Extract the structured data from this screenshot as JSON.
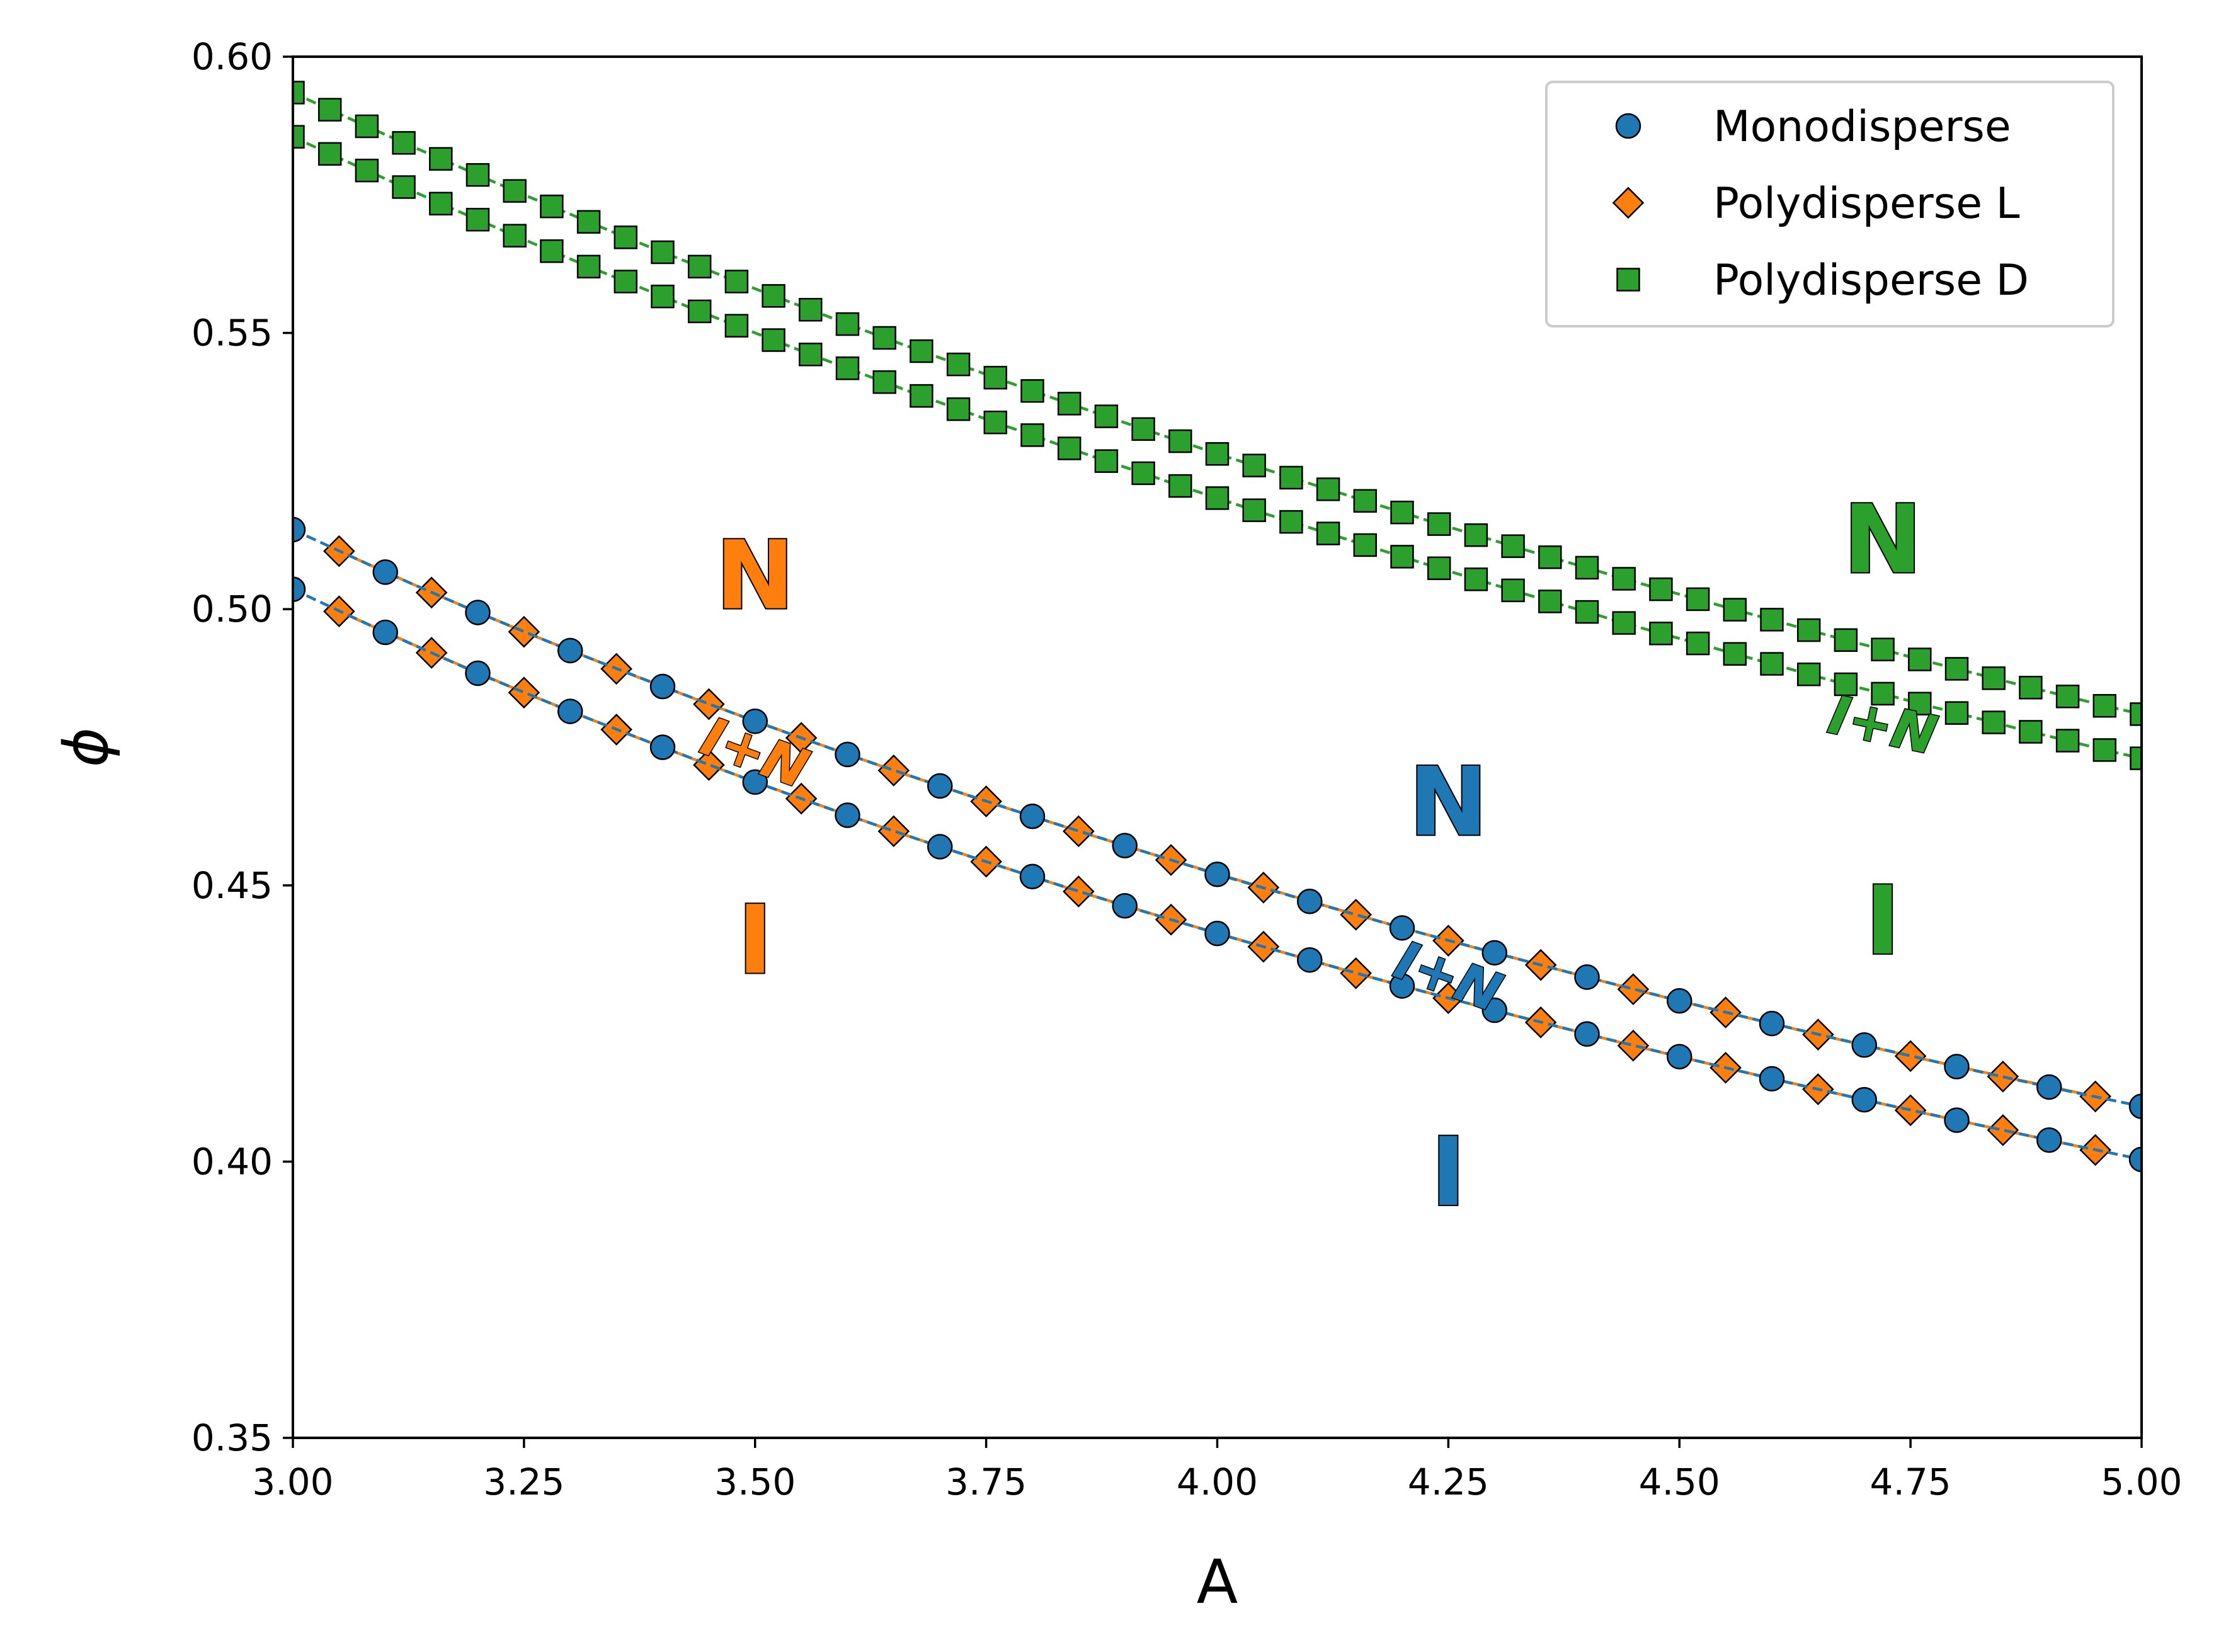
{
  "chart_data": {
    "type": "scatter",
    "title": "",
    "xlabel": "A",
    "ylabel": "ϕ",
    "xlim": [
      3.0,
      5.0
    ],
    "ylim": [
      0.35,
      0.6
    ],
    "x_ticks": [
      "3.00",
      "3.25",
      "3.50",
      "3.75",
      "4.00",
      "4.25",
      "4.50",
      "4.75",
      "5.00"
    ],
    "y_ticks": [
      "0.35",
      "0.40",
      "0.45",
      "0.50",
      "0.55",
      "0.60"
    ],
    "grid": false,
    "legend_position": "top-right",
    "series": [
      {
        "name": "Monodisperse",
        "marker": "circle",
        "color": "#1f77b4",
        "line_style": "dashed",
        "boundaries": [
          {
            "x": [
              3.0,
              3.1,
              3.2,
              3.3,
              3.4,
              3.5,
              3.6,
              3.7,
              3.8,
              3.9,
              4.0,
              4.1,
              4.2,
              4.3,
              4.4,
              4.5,
              4.6,
              4.7,
              4.8,
              4.9,
              5.0
            ],
            "y": [
              0.5144,
              0.5067,
              0.4994,
              0.4925,
              0.486,
              0.4797,
              0.4737,
              0.468,
              0.4625,
              0.4572,
              0.452,
              0.4471,
              0.4423,
              0.4378,
              0.4334,
              0.4291,
              0.425,
              0.4211,
              0.4172,
              0.4135,
              0.41
            ]
          },
          {
            "x": [
              3.0,
              3.1,
              3.2,
              3.3,
              3.4,
              3.5,
              3.6,
              3.7,
              3.8,
              3.9,
              4.0,
              4.1,
              4.2,
              4.3,
              4.4,
              4.5,
              4.6,
              4.7,
              4.8,
              4.9,
              5.0
            ],
            "y": [
              0.5036,
              0.4958,
              0.4884,
              0.4815,
              0.475,
              0.4687,
              0.4627,
              0.457,
              0.4516,
              0.4463,
              0.4413,
              0.4365,
              0.4318,
              0.4274,
              0.4231,
              0.419,
              0.415,
              0.4112,
              0.4075,
              0.4039,
              0.4004
            ]
          }
        ]
      },
      {
        "name": "Polydisperse L",
        "marker": "diamond",
        "color": "#ff7f0e",
        "line_style": "solid",
        "boundaries": [
          {
            "x": [
              3.05,
              3.15,
              3.25,
              3.35,
              3.45,
              3.55,
              3.65,
              3.75,
              3.85,
              3.95,
              4.05,
              4.15,
              4.25,
              4.35,
              4.45,
              4.55,
              4.65,
              4.75,
              4.85,
              4.95
            ],
            "y": [
              0.5105,
              0.503,
              0.4959,
              0.4892,
              0.4828,
              0.4767,
              0.4708,
              0.4652,
              0.4598,
              0.4546,
              0.4496,
              0.4447,
              0.44,
              0.4356,
              0.4312,
              0.427,
              0.423,
              0.4191,
              0.4154,
              0.4118
            ]
          },
          {
            "x": [
              3.05,
              3.15,
              3.25,
              3.35,
              3.45,
              3.55,
              3.65,
              3.75,
              3.85,
              3.95,
              4.05,
              4.15,
              4.25,
              4.35,
              4.45,
              4.55,
              4.65,
              4.75,
              4.85,
              4.95
            ],
            "y": [
              0.4996,
              0.4921,
              0.4849,
              0.4782,
              0.4718,
              0.4657,
              0.4598,
              0.4543,
              0.4489,
              0.4438,
              0.4389,
              0.4341,
              0.4296,
              0.4252,
              0.421,
              0.417,
              0.4131,
              0.4093,
              0.4057,
              0.4021
            ]
          }
        ]
      },
      {
        "name": "Polydisperse D",
        "marker": "square",
        "color": "#2ca02c",
        "line_style": "dashed",
        "boundaries": [
          {
            "x": [
              3.0,
              3.04,
              3.08,
              3.12,
              3.16,
              3.2,
              3.24,
              3.28,
              3.32,
              3.36,
              3.4,
              3.44,
              3.48,
              3.52,
              3.56,
              3.6,
              3.64,
              3.68,
              3.72,
              3.76,
              3.8,
              3.84,
              3.88,
              3.92,
              3.96,
              4.0,
              4.04,
              4.08,
              4.12,
              4.16,
              4.2,
              4.24,
              4.28,
              4.32,
              4.36,
              4.4,
              4.44,
              4.48,
              4.52,
              4.56,
              4.6,
              4.64,
              4.68,
              4.72,
              4.76,
              4.8,
              4.84,
              4.88,
              4.92,
              4.96,
              5.0
            ],
            "y": [
              0.5935,
              0.5904,
              0.5874,
              0.5844,
              0.5815,
              0.5786,
              0.5757,
              0.5729,
              0.5701,
              0.5673,
              0.5646,
              0.562,
              0.5593,
              0.5567,
              0.5542,
              0.5516,
              0.5491,
              0.5467,
              0.5443,
              0.5419,
              0.5395,
              0.5372,
              0.5349,
              0.5326,
              0.5304,
              0.5281,
              0.526,
              0.5238,
              0.5217,
              0.5196,
              0.5175,
              0.5154,
              0.5134,
              0.5114,
              0.5094,
              0.5075,
              0.5055,
              0.5036,
              0.5018,
              0.4999,
              0.4981,
              0.4962,
              0.4944,
              0.4927,
              0.4909,
              0.4892,
              0.4875,
              0.4858,
              0.4842,
              0.4825,
              0.481
            ]
          },
          {
            "x": [
              3.0,
              3.04,
              3.08,
              3.12,
              3.16,
              3.2,
              3.24,
              3.28,
              3.32,
              3.36,
              3.4,
              3.44,
              3.48,
              3.52,
              3.56,
              3.6,
              3.64,
              3.68,
              3.72,
              3.76,
              3.8,
              3.84,
              3.88,
              3.92,
              3.96,
              4.0,
              4.04,
              4.08,
              4.12,
              4.16,
              4.2,
              4.24,
              4.28,
              4.32,
              4.36,
              4.4,
              4.44,
              4.48,
              4.52,
              4.56,
              4.6,
              4.64,
              4.68,
              4.72,
              4.76,
              4.8,
              4.84,
              4.88,
              4.92,
              4.96,
              5.0
            ],
            "y": [
              0.5855,
              0.5824,
              0.5794,
              0.5764,
              0.5734,
              0.5705,
              0.5676,
              0.5648,
              0.562,
              0.5593,
              0.5566,
              0.5539,
              0.5513,
              0.5487,
              0.5461,
              0.5436,
              0.5411,
              0.5386,
              0.5362,
              0.5338,
              0.5315,
              0.5291,
              0.5268,
              0.5246,
              0.5223,
              0.5201,
              0.5179,
              0.5158,
              0.5137,
              0.5116,
              0.5095,
              0.5074,
              0.5054,
              0.5034,
              0.5014,
              0.4995,
              0.4975,
              0.4956,
              0.4938,
              0.4919,
              0.4901,
              0.4882,
              0.4864,
              0.4847,
              0.4829,
              0.4812,
              0.4795,
              0.4778,
              0.4762,
              0.4745,
              0.473
            ]
          }
        ]
      }
    ],
    "annotations": [
      {
        "text": "N",
        "x": 3.5,
        "y": 0.506,
        "color": "#ff7f0e",
        "size": "large",
        "rotate": 0
      },
      {
        "text": "I+N",
        "x": 3.5,
        "y": 0.474,
        "color": "#ff7f0e",
        "size": "small",
        "rotate": 20
      },
      {
        "text": "I",
        "x": 3.5,
        "y": 0.44,
        "color": "#ff7f0e",
        "size": "large",
        "rotate": 0
      },
      {
        "text": "N",
        "x": 4.25,
        "y": 0.465,
        "color": "#1f77b4",
        "size": "large",
        "rotate": 0
      },
      {
        "text": "I+N",
        "x": 4.25,
        "y": 0.4335,
        "color": "#1f77b4",
        "size": "small",
        "rotate": 20
      },
      {
        "text": "I",
        "x": 4.25,
        "y": 0.398,
        "color": "#1f77b4",
        "size": "large",
        "rotate": 0
      },
      {
        "text": "N",
        "x": 4.72,
        "y": 0.5125,
        "color": "#2ca02c",
        "size": "large",
        "rotate": 0
      },
      {
        "text": "I+N",
        "x": 4.72,
        "y": 0.479,
        "color": "#2ca02c",
        "size": "small",
        "rotate": 12
      },
      {
        "text": "I",
        "x": 4.72,
        "y": 0.4435,
        "color": "#2ca02c",
        "size": "large",
        "rotate": 0
      }
    ]
  }
}
